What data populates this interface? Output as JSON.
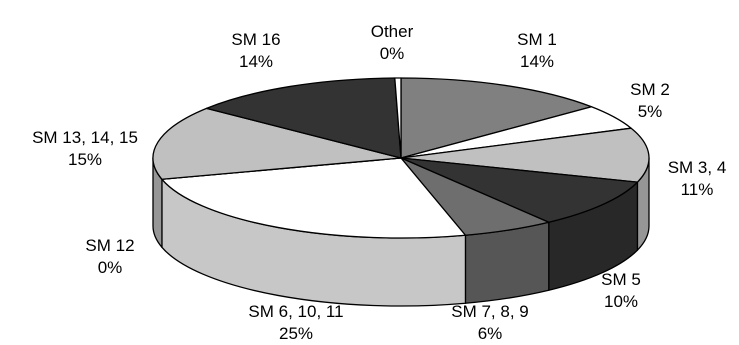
{
  "chart_data": {
    "type": "pie",
    "style": "3d",
    "start_angle_deg": 90,
    "direction": "clockwise",
    "edge_color": "#000000",
    "slices": [
      {
        "name": "SM 1",
        "pct_label": "14%",
        "value": 14,
        "color": "#808080"
      },
      {
        "name": "SM 2",
        "pct_label": "5%",
        "value": 5,
        "color": "#ffffff"
      },
      {
        "name": "SM 3, 4",
        "pct_label": "11%",
        "value": 11,
        "color": "#c0c0c0"
      },
      {
        "name": "SM 5",
        "pct_label": "10%",
        "value": 10,
        "color": "#333333"
      },
      {
        "name": "SM 7, 8, 9",
        "pct_label": "6%",
        "value": 6,
        "color": "#6e6e6e"
      },
      {
        "name": "SM 6, 10, 11",
        "pct_label": "25%",
        "value": 25,
        "color": "#ffffff"
      },
      {
        "name": "SM 12",
        "pct_label": "0%",
        "value": 0,
        "color": "#808080"
      },
      {
        "name": "SM 13, 14, 15",
        "pct_label": "15%",
        "value": 15,
        "color": "#c0c0c0"
      },
      {
        "name": "SM 16",
        "pct_label": "14%",
        "value": 14,
        "color": "#333333"
      },
      {
        "name": "Other",
        "pct_label": "0%",
        "value": 0.4,
        "color": "#ffffff"
      }
    ]
  }
}
